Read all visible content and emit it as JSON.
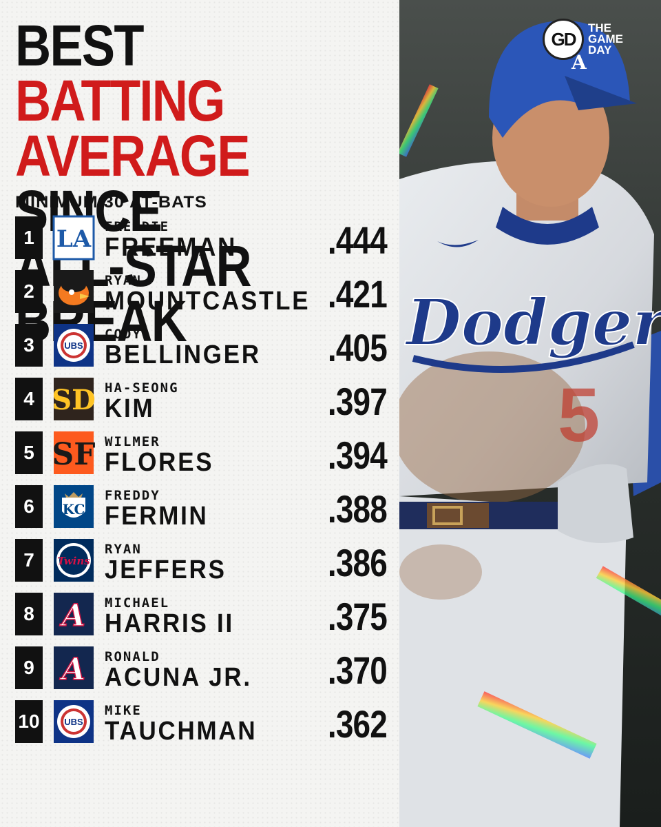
{
  "title": {
    "line1_black": "BEST",
    "line1_red": "BATTING",
    "line2_red": "AVERAGE",
    "line2_black": "SINCE",
    "line3_black": "ALL-STAR BREAK"
  },
  "subtitle": "MINIMUM 30 AT-BATS",
  "brand": {
    "mark": "GD",
    "line1": "THE",
    "line2": "GAME",
    "line3": "DAY"
  },
  "colors": {
    "accent": "#d01b1b",
    "text": "#111111",
    "background": "#f4f4f2"
  },
  "players": [
    {
      "rank": "1",
      "first": "FREDDIE",
      "last": "FREEMAN",
      "avg": ".444",
      "team_logo": "dodgers-logo"
    },
    {
      "rank": "2",
      "first": "RYAN",
      "last": "MOUNTCASTLE",
      "avg": ".421",
      "team_logo": "orioles-logo"
    },
    {
      "rank": "3",
      "first": "CODY",
      "last": "BELLINGER",
      "avg": ".405",
      "team_logo": "cubs-logo"
    },
    {
      "rank": "4",
      "first": "HA-SEONG",
      "last": "KIM",
      "avg": ".397",
      "team_logo": "padres-logo"
    },
    {
      "rank": "5",
      "first": "WILMER",
      "last": "FLORES",
      "avg": ".394",
      "team_logo": "giants-logo"
    },
    {
      "rank": "6",
      "first": "FREDDY",
      "last": "FERMIN",
      "avg": ".388",
      "team_logo": "royals-logo"
    },
    {
      "rank": "7",
      "first": "RYAN",
      "last": "JEFFERS",
      "avg": ".386",
      "team_logo": "twins-logo"
    },
    {
      "rank": "8",
      "first": "MICHAEL",
      "last": "HARRIS II",
      "avg": ".375",
      "team_logo": "braves-logo"
    },
    {
      "rank": "9",
      "first": "RONALD",
      "last": "ACUNA JR.",
      "avg": ".370",
      "team_logo": "braves-logo"
    },
    {
      "rank": "10",
      "first": "MIKE",
      "last": "TAUCHMAN",
      "avg": ".362",
      "team_logo": "cubs-logo"
    }
  ],
  "photo": {
    "jersey_text": "Dodgers",
    "cap_letter": "A"
  }
}
